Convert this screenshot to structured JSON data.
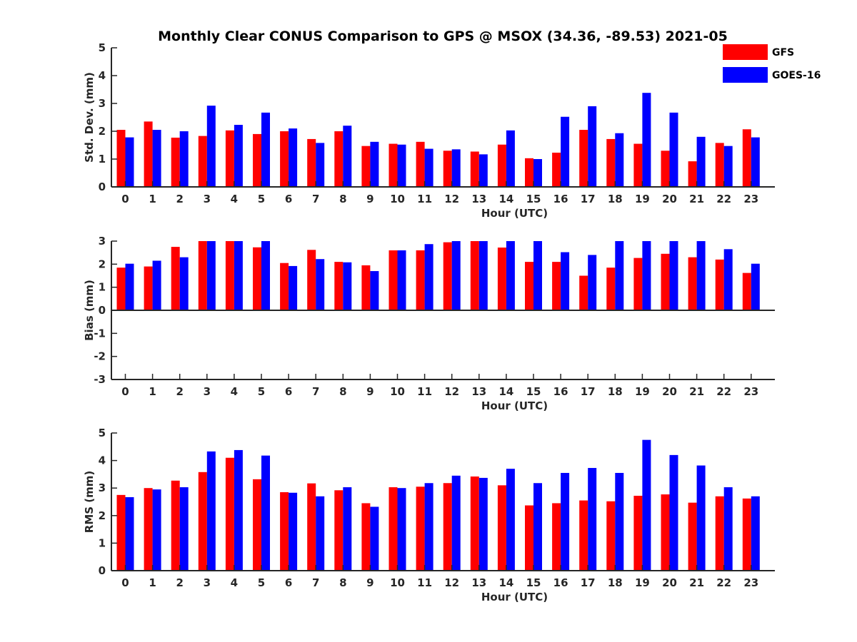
{
  "chart_data": {
    "title": "Monthly Clear CONUS Comparison to GPS @ MSOX (34.36, -89.53) 2021-05",
    "legend": {
      "placement": "top-right",
      "entries": [
        {
          "name": "GFS",
          "color": "#ff0000"
        },
        {
          "name": "GOES-16",
          "color": "#0000ff"
        }
      ]
    },
    "subplots": [
      {
        "type": "bar",
        "xlabel": "Hour (UTC)",
        "ylabel": "Std. Dev. (mm)",
        "ylim": [
          0,
          5
        ],
        "yticks": [
          "0",
          "1",
          "2",
          "3",
          "4",
          "5"
        ],
        "categories": [
          "0",
          "1",
          "2",
          "3",
          "4",
          "5",
          "6",
          "7",
          "8",
          "9",
          "10",
          "11",
          "12",
          "13",
          "14",
          "15",
          "16",
          "17",
          "18",
          "19",
          "20",
          "21",
          "22",
          "23"
        ],
        "series": [
          {
            "name": "GFS",
            "color": "#ff0000",
            "values": [
              2.05,
              2.35,
              1.77,
              1.83,
              2.03,
              1.9,
              2.0,
              1.72,
              2.0,
              1.47,
              1.55,
              1.62,
              1.3,
              1.27,
              1.52,
              1.03,
              1.23,
              2.05,
              1.72,
              1.55,
              1.3,
              0.92,
              1.58,
              2.07
            ]
          },
          {
            "name": "GOES-16",
            "color": "#0000ff",
            "values": [
              1.78,
              2.05,
              2.0,
              2.92,
              2.23,
              2.67,
              2.1,
              1.58,
              2.2,
              1.62,
              1.52,
              1.37,
              1.35,
              1.17,
              2.03,
              1.0,
              2.52,
              2.9,
              1.93,
              3.38,
              2.67,
              1.8,
              1.47,
              1.78
            ]
          }
        ]
      },
      {
        "type": "bar",
        "xlabel": "Hour (UTC)",
        "ylabel": "Bias (mm)",
        "ylim": [
          -3,
          3
        ],
        "yticks": [
          "-3",
          "-2",
          "-1",
          "0",
          "1",
          "2",
          "3"
        ],
        "categories": [
          "0",
          "1",
          "2",
          "3",
          "4",
          "5",
          "6",
          "7",
          "8",
          "9",
          "10",
          "11",
          "12",
          "13",
          "14",
          "15",
          "16",
          "17",
          "18",
          "19",
          "20",
          "21",
          "22",
          "23"
        ],
        "series": [
          {
            "name": "GFS",
            "color": "#ff0000",
            "values": [
              1.85,
              1.9,
              2.75,
              3.0,
              3.0,
              2.73,
              2.05,
              2.62,
              2.1,
              1.95,
              2.6,
              2.6,
              2.95,
              3.0,
              2.72,
              2.1,
              2.1,
              1.5,
              1.85,
              2.27,
              2.45,
              2.3,
              2.2,
              1.62
            ]
          },
          {
            "name": "GOES-16",
            "color": "#0000ff",
            "values": [
              2.02,
              2.15,
              2.3,
              3.0,
              3.0,
              3.0,
              1.92,
              2.22,
              2.08,
              1.7,
              2.6,
              2.87,
              3.0,
              3.0,
              3.0,
              3.0,
              2.52,
              2.4,
              3.0,
              3.0,
              3.0,
              3.0,
              2.65,
              2.02
            ]
          }
        ]
      },
      {
        "type": "bar",
        "xlabel": "Hour (UTC)",
        "ylabel": "RMS (mm)",
        "ylim": [
          0,
          5
        ],
        "yticks": [
          "0",
          "1",
          "2",
          "3",
          "4",
          "5"
        ],
        "categories": [
          "0",
          "1",
          "2",
          "3",
          "4",
          "5",
          "6",
          "7",
          "8",
          "9",
          "10",
          "11",
          "12",
          "13",
          "14",
          "15",
          "16",
          "17",
          "18",
          "19",
          "20",
          "21",
          "22",
          "23"
        ],
        "series": [
          {
            "name": "GFS",
            "color": "#ff0000",
            "values": [
              2.75,
              3.0,
              3.27,
              3.58,
              4.1,
              3.32,
              2.85,
              3.17,
              2.92,
              2.45,
              3.03,
              3.05,
              3.18,
              3.42,
              3.1,
              2.37,
              2.45,
              2.55,
              2.52,
              2.72,
              2.77,
              2.47,
              2.7,
              2.62
            ]
          },
          {
            "name": "GOES-16",
            "color": "#0000ff",
            "values": [
              2.67,
              2.95,
              3.03,
              4.33,
              4.38,
              4.18,
              2.83,
              2.7,
              3.03,
              2.32,
              3.0,
              3.18,
              3.45,
              3.37,
              3.7,
              3.18,
              3.55,
              3.73,
              3.55,
              4.75,
              4.2,
              3.82,
              3.03,
              2.7
            ]
          }
        ]
      }
    ]
  }
}
